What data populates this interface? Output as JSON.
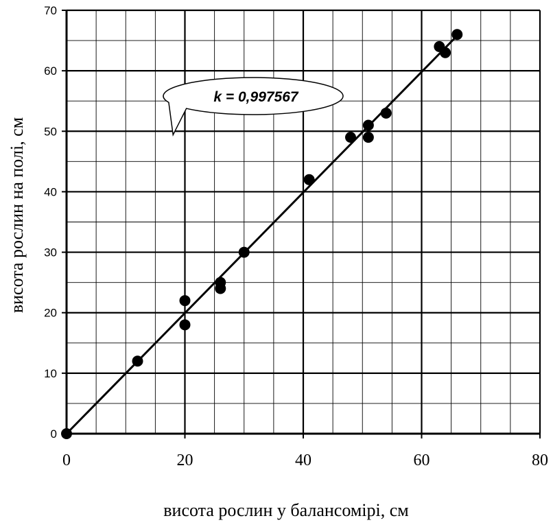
{
  "chart_data": {
    "type": "scatter",
    "title": "",
    "xlabel": "висота рослин у балансомірі, см",
    "ylabel": "висота рослин на полі, см",
    "xlim": [
      0,
      80
    ],
    "ylim": [
      0,
      70
    ],
    "x_ticks": [
      0,
      20,
      40,
      60,
      80
    ],
    "y_ticks": [
      0,
      10,
      20,
      30,
      40,
      50,
      60,
      70
    ],
    "grid": true,
    "minor_grid": true,
    "series": [
      {
        "name": "",
        "points": [
          {
            "x": 0,
            "y": 0
          },
          {
            "x": 12,
            "y": 12
          },
          {
            "x": 20,
            "y": 22
          },
          {
            "x": 20,
            "y": 18
          },
          {
            "x": 26,
            "y": 25
          },
          {
            "x": 26,
            "y": 24
          },
          {
            "x": 30,
            "y": 30
          },
          {
            "x": 41,
            "y": 42
          },
          {
            "x": 48,
            "y": 49
          },
          {
            "x": 51,
            "y": 51
          },
          {
            "x": 51,
            "y": 49
          },
          {
            "x": 54,
            "y": 53
          },
          {
            "x": 63,
            "y": 64
          },
          {
            "x": 64,
            "y": 63
          },
          {
            "x": 66,
            "y": 66
          }
        ]
      }
    ],
    "trendline": {
      "x": [
        0,
        66
      ],
      "y": [
        0,
        65.8
      ]
    },
    "annotation": {
      "text": "k = 0,997567",
      "anchor_x": 18,
      "anchor_y": 51
    }
  }
}
